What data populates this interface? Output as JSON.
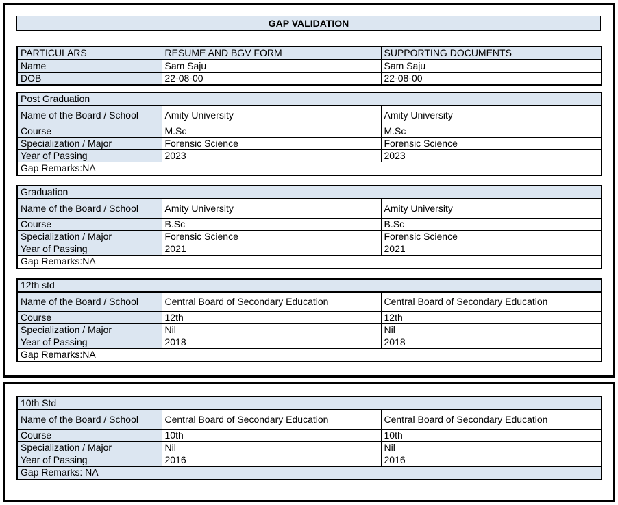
{
  "title": "GAP VALIDATION",
  "colors": {
    "header_fill": "#dce6f1",
    "border": "#000000",
    "page_bg": "#ffffff",
    "text": "#000000"
  },
  "particulars_table": {
    "headers": [
      "PARTICULARS",
      "RESUME AND BGV FORM",
      "SUPPORTING DOCUMENTS"
    ],
    "rows": [
      {
        "label": "Name",
        "resume": "Sam Saju",
        "supporting": "Sam Saju"
      },
      {
        "label": "DOB",
        "resume": "22-08-00",
        "supporting": "22-08-00"
      }
    ]
  },
  "sections": [
    {
      "title": "Post Graduation",
      "frame": 1,
      "rows": [
        {
          "label": "Name of the Board / School",
          "resume": "Amity University",
          "supporting": "Amity University"
        },
        {
          "label": "Course",
          "resume": "M.Sc",
          "supporting": "M.Sc"
        },
        {
          "label": "Specialization / Major",
          "resume": "Forensic Science",
          "supporting": "Forensic Science"
        },
        {
          "label": "Year of Passing",
          "resume": "2023",
          "supporting": "2023"
        }
      ],
      "gap_remarks": "Gap Remarks:NA",
      "remarks_highlighted": false
    },
    {
      "title": "Graduation",
      "frame": 1,
      "rows": [
        {
          "label": "Name of the Board / School",
          "resume": "Amity University",
          "supporting": "Amity University"
        },
        {
          "label": "Course",
          "resume": "B.Sc",
          "supporting": "B.Sc"
        },
        {
          "label": "Specialization / Major",
          "resume": "Forensic Science",
          "supporting": "Forensic Science"
        },
        {
          "label": "Year of Passing",
          "resume": "2021",
          "supporting": "2021"
        }
      ],
      "gap_remarks": "Gap Remarks:NA",
      "remarks_highlighted": false
    },
    {
      "title": "12th std",
      "frame": 1,
      "rows": [
        {
          "label": "Name of the Board / School",
          "resume": "Central Board of Secondary Education",
          "supporting": "Central Board of Secondary Education"
        },
        {
          "label": "Course",
          "resume": "12th",
          "supporting": "12th"
        },
        {
          "label": "Specialization / Major",
          "resume": "Nil",
          "supporting": "Nil"
        },
        {
          "label": "Year of Passing",
          "resume": "2018",
          "supporting": "2018"
        }
      ],
      "gap_remarks": "Gap Remarks:NA",
      "remarks_highlighted": false
    },
    {
      "title": "10th Std",
      "frame": 2,
      "rows": [
        {
          "label": "Name of the Board / School",
          "resume": "Central Board of Secondary Education",
          "supporting": "Central Board of Secondary Education"
        },
        {
          "label": "Course",
          "resume": "10th",
          "supporting": "10th"
        },
        {
          "label": "Specialization / Major",
          "resume": "Nil",
          "supporting": "Nil"
        },
        {
          "label": "Year of Passing",
          "resume": "2016",
          "supporting": "2016"
        }
      ],
      "gap_remarks": "Gap Remarks: NA",
      "remarks_highlighted": true
    }
  ]
}
